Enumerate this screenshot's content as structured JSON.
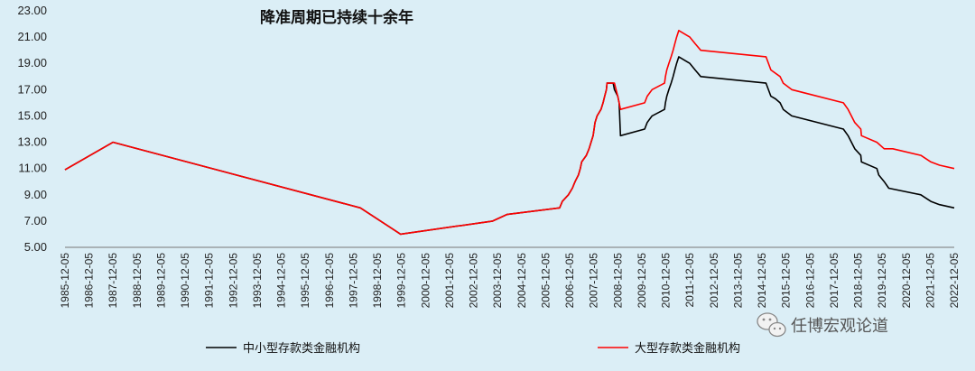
{
  "chart_data": {
    "type": "line",
    "title": "降准周期已持续十余年",
    "xlabel": "",
    "ylabel": "",
    "ylim": [
      5,
      23
    ],
    "y_ticks": [
      "5.00",
      "7.00",
      "9.00",
      "11.00",
      "13.00",
      "15.00",
      "17.00",
      "19.00",
      "21.00",
      "23.00"
    ],
    "x_ticks": [
      "1985-12-05",
      "1986-12-05",
      "1987-12-05",
      "1988-12-05",
      "1989-12-05",
      "1990-12-05",
      "1991-12-05",
      "1992-12-05",
      "1993-12-05",
      "1994-12-05",
      "1995-12-05",
      "1996-12-05",
      "1997-12-05",
      "1998-12-05",
      "1999-12-05",
      "2000-12-05",
      "2001-12-05",
      "2002-12-05",
      "2003-12-05",
      "2004-12-05",
      "2005-12-05",
      "2006-12-05",
      "2007-12-05",
      "2008-12-05",
      "2009-12-05",
      "2010-12-05",
      "2011-12-05",
      "2012-12-05",
      "2013-12-05",
      "2014-12-05",
      "2015-12-05",
      "2016-12-05",
      "2017-12-05",
      "2018-12-05",
      "2019-12-05",
      "2020-12-05",
      "2021-12-05",
      "2022-12-05"
    ],
    "x_range": [
      "1985-12-05",
      "2022-12-05"
    ],
    "grid": false,
    "legend": "bottom",
    "series": [
      {
        "name": "中小型存款类金融机构",
        "color": "#000000",
        "points": [
          [
            "1985-12-05",
            10.9
          ],
          [
            "1987-12-05",
            13.0
          ],
          [
            "1998-03-21",
            8.0
          ],
          [
            "1999-11-21",
            6.0
          ],
          [
            "2003-09-21",
            7.0
          ],
          [
            "2004-04-25",
            7.5
          ],
          [
            "2006-07-05",
            8.0
          ],
          [
            "2006-08-15",
            8.5
          ],
          [
            "2006-11-15",
            9.0
          ],
          [
            "2007-01-15",
            9.5
          ],
          [
            "2007-02-25",
            10.0
          ],
          [
            "2007-04-16",
            10.5
          ],
          [
            "2007-05-15",
            11.0
          ],
          [
            "2007-06-05",
            11.5
          ],
          [
            "2007-08-15",
            12.0
          ],
          [
            "2007-09-25",
            12.5
          ],
          [
            "2007-10-25",
            13.0
          ],
          [
            "2007-11-26",
            13.5
          ],
          [
            "2007-12-25",
            14.5
          ],
          [
            "2008-01-25",
            15.0
          ],
          [
            "2008-03-25",
            15.5
          ],
          [
            "2008-04-25",
            16.0
          ],
          [
            "2008-05-20",
            16.5
          ],
          [
            "2008-06-15",
            17.0
          ],
          [
            "2008-06-25",
            17.5
          ],
          [
            "2008-09-25",
            17.5
          ],
          [
            "2008-10-15",
            17.0
          ],
          [
            "2008-12-05",
            16.5
          ],
          [
            "2008-12-25",
            16.0
          ],
          [
            "2009-01-15",
            13.5
          ],
          [
            "2010-01-18",
            14.0
          ],
          [
            "2010-02-25",
            14.5
          ],
          [
            "2010-05-10",
            15.0
          ],
          [
            "2010-11-16",
            15.5
          ],
          [
            "2010-11-29",
            16.0
          ],
          [
            "2010-12-20",
            16.5
          ],
          [
            "2011-01-20",
            17.0
          ],
          [
            "2011-02-24",
            17.5
          ],
          [
            "2011-03-25",
            18.0
          ],
          [
            "2011-04-21",
            18.5
          ],
          [
            "2011-05-18",
            19.0
          ],
          [
            "2011-06-20",
            19.5
          ],
          [
            "2011-12-05",
            19.0
          ],
          [
            "2012-02-24",
            18.5
          ],
          [
            "2012-05-18",
            18.0
          ],
          [
            "2015-02-05",
            17.5
          ],
          [
            "2015-04-20",
            16.5
          ],
          [
            "2015-06-28",
            16.3
          ],
          [
            "2015-09-06",
            16.0
          ],
          [
            "2015-10-24",
            15.5
          ],
          [
            "2016-03-01",
            15.0
          ],
          [
            "2018-04-25",
            14.0
          ],
          [
            "2018-07-05",
            13.5
          ],
          [
            "2018-10-15",
            12.5
          ],
          [
            "2019-01-15",
            12.0
          ],
          [
            "2019-01-25",
            11.5
          ],
          [
            "2019-09-16",
            11.0
          ],
          [
            "2019-10-15",
            10.5
          ],
          [
            "2020-01-06",
            10.0
          ],
          [
            "2020-03-16",
            9.5
          ],
          [
            "2021-07-15",
            9.0
          ],
          [
            "2021-12-15",
            8.5
          ],
          [
            "2022-04-25",
            8.25
          ],
          [
            "2022-12-05",
            8.0
          ]
        ]
      },
      {
        "name": "大型存款类金融机构",
        "color": "#ff0000",
        "points": [
          [
            "1985-12-05",
            10.9
          ],
          [
            "1987-12-05",
            13.0
          ],
          [
            "1998-03-21",
            8.0
          ],
          [
            "1999-11-21",
            6.0
          ],
          [
            "2003-09-21",
            7.0
          ],
          [
            "2004-04-25",
            7.5
          ],
          [
            "2006-07-05",
            8.0
          ],
          [
            "2006-08-15",
            8.5
          ],
          [
            "2006-11-15",
            9.0
          ],
          [
            "2007-01-15",
            9.5
          ],
          [
            "2007-02-25",
            10.0
          ],
          [
            "2007-04-16",
            10.5
          ],
          [
            "2007-05-15",
            11.0
          ],
          [
            "2007-06-05",
            11.5
          ],
          [
            "2007-08-15",
            12.0
          ],
          [
            "2007-09-25",
            12.5
          ],
          [
            "2007-10-25",
            13.0
          ],
          [
            "2007-11-26",
            13.5
          ],
          [
            "2007-12-25",
            14.5
          ],
          [
            "2008-01-25",
            15.0
          ],
          [
            "2008-03-25",
            15.5
          ],
          [
            "2008-04-25",
            16.0
          ],
          [
            "2008-05-20",
            16.5
          ],
          [
            "2008-06-15",
            17.0
          ],
          [
            "2008-06-25",
            17.5
          ],
          [
            "2008-10-15",
            17.5
          ],
          [
            "2008-12-05",
            16.5
          ],
          [
            "2008-12-25",
            16.0
          ],
          [
            "2009-01-15",
            15.5
          ],
          [
            "2010-01-18",
            16.0
          ],
          [
            "2010-02-25",
            16.5
          ],
          [
            "2010-05-10",
            17.0
          ],
          [
            "2010-11-16",
            17.5
          ],
          [
            "2010-11-29",
            18.0
          ],
          [
            "2010-12-20",
            18.5
          ],
          [
            "2011-01-20",
            19.0
          ],
          [
            "2011-02-24",
            19.5
          ],
          [
            "2011-03-25",
            20.0
          ],
          [
            "2011-04-21",
            20.5
          ],
          [
            "2011-05-18",
            21.0
          ],
          [
            "2011-06-20",
            21.5
          ],
          [
            "2011-12-05",
            21.0
          ],
          [
            "2012-02-24",
            20.5
          ],
          [
            "2012-05-18",
            20.0
          ],
          [
            "2015-02-05",
            19.5
          ],
          [
            "2015-04-20",
            18.5
          ],
          [
            "2015-09-06",
            18.0
          ],
          [
            "2015-10-24",
            17.5
          ],
          [
            "2016-03-01",
            17.0
          ],
          [
            "2018-04-25",
            16.0
          ],
          [
            "2018-07-05",
            15.5
          ],
          [
            "2018-10-15",
            14.5
          ],
          [
            "2019-01-15",
            14.0
          ],
          [
            "2019-01-25",
            13.5
          ],
          [
            "2019-09-16",
            13.0
          ],
          [
            "2020-01-06",
            12.5
          ],
          [
            "2020-05-15",
            12.5
          ],
          [
            "2021-07-15",
            12.0
          ],
          [
            "2021-12-15",
            11.5
          ],
          [
            "2022-04-25",
            11.25
          ],
          [
            "2022-12-05",
            11.0
          ]
        ]
      }
    ]
  },
  "watermark": {
    "icon": "wechat-icon",
    "text": "任博宏观论道"
  }
}
